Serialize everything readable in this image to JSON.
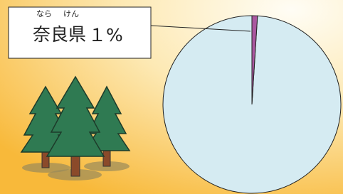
{
  "chart_data": {
    "type": "pie",
    "categories": [
      "奈良県",
      null
    ],
    "values": [
      1,
      99
    ],
    "value_labels": [
      "１%",
      null
    ],
    "furigana": [
      "なら",
      "けん"
    ],
    "colors": [
      "#a9579f",
      "#d5ebf2"
    ],
    "start_angle": 0,
    "direction": "clockwise"
  }
}
